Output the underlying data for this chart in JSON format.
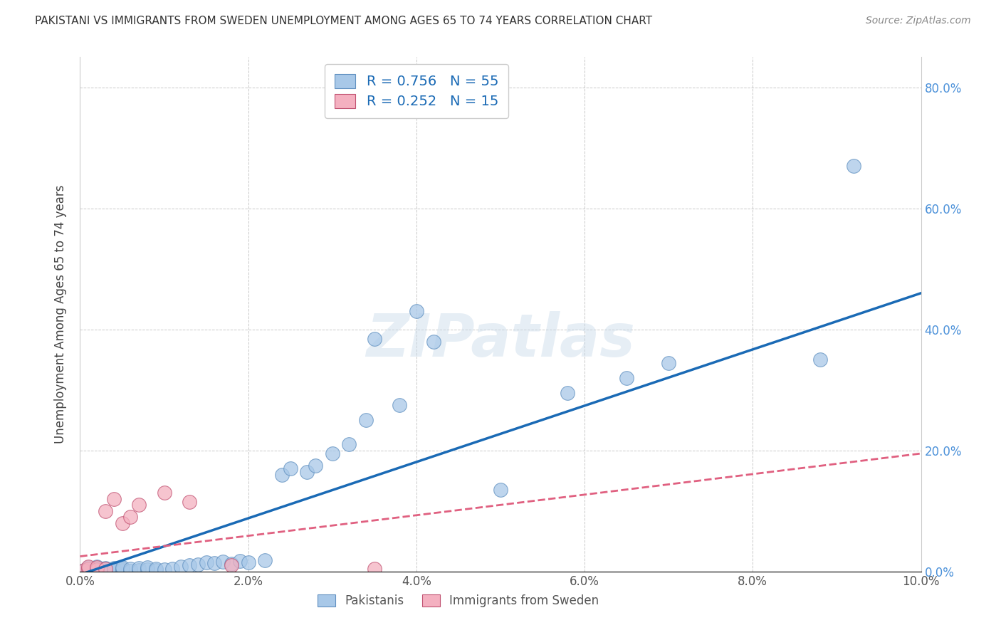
{
  "title": "PAKISTANI VS IMMIGRANTS FROM SWEDEN UNEMPLOYMENT AMONG AGES 65 TO 74 YEARS CORRELATION CHART",
  "source": "Source: ZipAtlas.com",
  "ylabel": "Unemployment Among Ages 65 to 74 years",
  "xlim": [
    0,
    0.1
  ],
  "ylim": [
    0,
    0.85
  ],
  "xticks": [
    0.0,
    0.02,
    0.04,
    0.06,
    0.08,
    0.1
  ],
  "yticks": [
    0.0,
    0.2,
    0.4,
    0.6,
    0.8
  ],
  "ytick_labels": [
    "0.0%",
    "20.0%",
    "40.0%",
    "60.0%",
    "80.0%"
  ],
  "xtick_labels": [
    "0.0%",
    "2.0%",
    "4.0%",
    "6.0%",
    "8.0%",
    "10.0%"
  ],
  "blue_R": 0.756,
  "blue_N": 55,
  "pink_R": 0.252,
  "pink_N": 15,
  "blue_color": "#a8c8e8",
  "pink_color": "#f4b0c0",
  "blue_line_color": "#1a6ab5",
  "pink_line_color": "#e06080",
  "blue_edge_color": "#6090c0",
  "pink_edge_color": "#c05070",
  "blue_scatter_x": [
    0.0005,
    0.001,
    0.001,
    0.001,
    0.001,
    0.002,
    0.002,
    0.002,
    0.002,
    0.003,
    0.003,
    0.003,
    0.004,
    0.004,
    0.004,
    0.005,
    0.005,
    0.005,
    0.006,
    0.006,
    0.007,
    0.007,
    0.008,
    0.008,
    0.009,
    0.009,
    0.01,
    0.011,
    0.012,
    0.013,
    0.014,
    0.015,
    0.016,
    0.017,
    0.018,
    0.019,
    0.02,
    0.022,
    0.024,
    0.025,
    0.027,
    0.028,
    0.03,
    0.032,
    0.034,
    0.035,
    0.038,
    0.04,
    0.042,
    0.05,
    0.058,
    0.065,
    0.07,
    0.088,
    0.092
  ],
  "blue_scatter_y": [
    0.002,
    0.001,
    0.003,
    0.005,
    0.007,
    0.001,
    0.003,
    0.005,
    0.008,
    0.002,
    0.004,
    0.006,
    0.001,
    0.003,
    0.006,
    0.002,
    0.004,
    0.007,
    0.001,
    0.005,
    0.002,
    0.006,
    0.003,
    0.007,
    0.002,
    0.005,
    0.003,
    0.004,
    0.008,
    0.01,
    0.012,
    0.015,
    0.014,
    0.016,
    0.013,
    0.017,
    0.015,
    0.018,
    0.16,
    0.17,
    0.165,
    0.175,
    0.195,
    0.21,
    0.25,
    0.385,
    0.275,
    0.43,
    0.38,
    0.135,
    0.295,
    0.32,
    0.345,
    0.35,
    0.67
  ],
  "pink_scatter_x": [
    0.0005,
    0.001,
    0.001,
    0.002,
    0.002,
    0.003,
    0.003,
    0.004,
    0.005,
    0.006,
    0.007,
    0.01,
    0.013,
    0.018,
    0.035
  ],
  "pink_scatter_y": [
    0.002,
    0.004,
    0.008,
    0.003,
    0.007,
    0.005,
    0.1,
    0.12,
    0.08,
    0.09,
    0.11,
    0.13,
    0.115,
    0.01,
    0.005
  ],
  "blue_line_x0": 0.0,
  "blue_line_y0": -0.005,
  "blue_line_x1": 0.1,
  "blue_line_y1": 0.46,
  "pink_line_x0": 0.0,
  "pink_line_y0": 0.025,
  "pink_line_x1": 0.1,
  "pink_line_y1": 0.195,
  "watermark": "ZIPatlas",
  "legend_label_blue": "Pakistanis",
  "legend_label_pink": "Immigrants from Sweden",
  "background_color": "#ffffff",
  "grid_color": "#c8c8c8"
}
